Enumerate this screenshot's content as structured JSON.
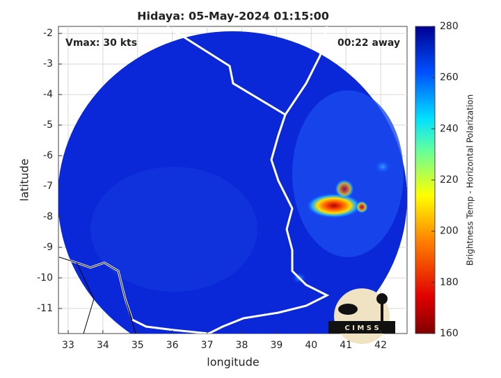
{
  "map": {
    "title": "Hidaya: 05-May-2024 01:15:00",
    "left_annotation": "Vmax: 30 kts",
    "right_annotation": "00:22 away",
    "xlabel": "longitude",
    "ylabel": "latitude",
    "xlim": [
      32.72,
      42.76
    ],
    "xticks": [
      33,
      34,
      35,
      36,
      37,
      38,
      39,
      40,
      41,
      42
    ],
    "ylim": [
      -11.82,
      -1.77
    ],
    "yticks": [
      -2,
      -3,
      -4,
      -5,
      -6,
      -7,
      -8,
      -9,
      -10,
      -11
    ],
    "colorbar": {
      "label": "Brightness Temp - Horizontal Polarization",
      "lim": [
        160,
        280
      ],
      "ticks": [
        160,
        180,
        200,
        220,
        240,
        260,
        280
      ]
    },
    "logo_text": "C I M S S"
  }
}
